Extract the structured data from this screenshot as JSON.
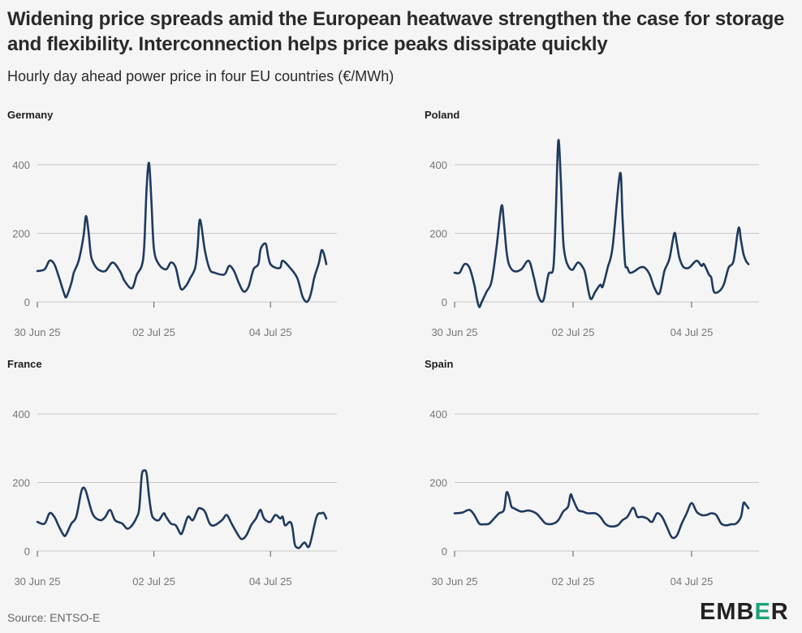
{
  "title": "Widening price spreads amid the European heatwave strengthen the case for storage and flexibility. Interconnection helps price peaks dissipate quickly",
  "subtitle": "Hourly day ahead power price in four EU countries (€/MWh)",
  "source": "Source: ENTSO-E",
  "logo": {
    "pre": "EMB",
    "mid": "E",
    "post": "R",
    "accent_color": "#1aa37a"
  },
  "colors": {
    "series": "#1f3a5f",
    "grid": "#c8c8c8",
    "background": "#f5f5f5"
  },
  "chart_data": [
    {
      "type": "line",
      "title": "Germany",
      "x_unit": "hours from 30 Jun 25 00:00",
      "x_tick_labels": [
        "30 Jun 25",
        "02 Jul 25",
        "04 Jul 25"
      ],
      "x_ticks": [
        0,
        48,
        96
      ],
      "xlim": [
        0,
        120
      ],
      "y_ticks": [
        0,
        200,
        400
      ],
      "ylim": [
        -40,
        480
      ],
      "grid": true,
      "x": [
        0,
        3,
        5,
        7,
        9,
        11,
        12,
        14,
        15,
        17,
        19,
        20,
        21,
        22,
        23,
        25,
        28,
        31,
        34,
        36,
        39,
        41,
        43,
        44,
        45,
        46,
        47,
        48,
        50,
        53,
        55,
        57,
        59,
        61,
        63,
        65,
        66,
        67,
        69,
        71,
        73,
        77,
        79,
        81,
        83,
        85,
        87,
        89,
        91,
        92,
        94,
        95,
        96,
        98,
        100,
        101,
        104,
        107,
        109,
        110,
        111,
        112,
        113,
        114,
        116,
        117,
        118,
        119
      ],
      "values": [
        90,
        95,
        120,
        110,
        70,
        25,
        15,
        55,
        85,
        120,
        190,
        250,
        210,
        140,
        115,
        95,
        90,
        115,
        90,
        60,
        40,
        80,
        105,
        160,
        330,
        405,
        290,
        155,
        110,
        95,
        115,
        100,
        40,
        45,
        70,
        100,
        160,
        240,
        150,
        95,
        85,
        80,
        105,
        90,
        55,
        30,
        45,
        95,
        110,
        155,
        170,
        135,
        110,
        100,
        100,
        120,
        100,
        70,
        20,
        5,
        0,
        10,
        35,
        70,
        115,
        150,
        140,
        110
      ]
    },
    {
      "type": "line",
      "title": "Poland",
      "x_unit": "hours from 30 Jun 25 00:00",
      "x_tick_labels": [
        "30 Jun 25",
        "02 Jul 25",
        "04 Jul 25"
      ],
      "x_ticks": [
        0,
        48,
        96
      ],
      "xlim": [
        0,
        120
      ],
      "y_ticks": [
        0,
        200,
        400
      ],
      "ylim": [
        -40,
        480
      ],
      "grid": true,
      "x": [
        0,
        2,
        4,
        6,
        8,
        9,
        10,
        11,
        13,
        15,
        17,
        19,
        20,
        21,
        22,
        24,
        27,
        30,
        32,
        34,
        36,
        38,
        40,
        41,
        42,
        43,
        44,
        45,
        46,
        47,
        48,
        50,
        52,
        53,
        55,
        57,
        59,
        60,
        62,
        64,
        67,
        68,
        69,
        70,
        71,
        73,
        75,
        77,
        79,
        81,
        83,
        85,
        87,
        89,
        90,
        91,
        92,
        93,
        95,
        98,
        100,
        101,
        103,
        104,
        105,
        107,
        109,
        111,
        113,
        115,
        116,
        117,
        118,
        119
      ],
      "values": [
        85,
        85,
        110,
        100,
        50,
        10,
        -15,
        0,
        30,
        60,
        160,
        280,
        230,
        150,
        110,
        90,
        95,
        120,
        75,
        15,
        5,
        80,
        100,
        260,
        470,
        360,
        180,
        125,
        105,
        95,
        95,
        115,
        100,
        80,
        10,
        30,
        50,
        45,
        100,
        160,
        375,
        250,
        115,
        100,
        85,
        90,
        100,
        100,
        80,
        40,
        25,
        90,
        125,
        200,
        170,
        130,
        110,
        100,
        100,
        120,
        105,
        110,
        80,
        70,
        30,
        30,
        50,
        100,
        120,
        215,
        180,
        140,
        120,
        110
      ]
    },
    {
      "type": "line",
      "title": "France",
      "x_unit": "hours from 30 Jun 25 00:00",
      "x_tick_labels": [
        "30 Jun 25",
        "02 Jul 25",
        "04 Jul 25"
      ],
      "x_ticks": [
        0,
        48,
        96
      ],
      "xlim": [
        0,
        120
      ],
      "y_ticks": [
        0,
        200,
        400
      ],
      "ylim": [
        -40,
        480
      ],
      "grid": true,
      "x": [
        0,
        3,
        5,
        7,
        9,
        11,
        12,
        14,
        16,
        18,
        19,
        20,
        21,
        23,
        26,
        28,
        30,
        32,
        35,
        37,
        39,
        41,
        42,
        43,
        44,
        45,
        46,
        47,
        48,
        50,
        52,
        53,
        55,
        57,
        59,
        60,
        62,
        64,
        66,
        67,
        69,
        71,
        73,
        76,
        78,
        80,
        82,
        84,
        86,
        88,
        90,
        91,
        92,
        93,
        94,
        96,
        98,
        100,
        101,
        102,
        104,
        105,
        106,
        107,
        108,
        110,
        112,
        115,
        117,
        118,
        119
      ],
      "values": [
        85,
        80,
        110,
        100,
        70,
        45,
        50,
        80,
        100,
        170,
        185,
        175,
        150,
        105,
        90,
        100,
        120,
        90,
        80,
        65,
        75,
        100,
        125,
        220,
        235,
        225,
        160,
        110,
        95,
        90,
        110,
        100,
        80,
        75,
        50,
        60,
        100,
        90,
        120,
        125,
        115,
        80,
        75,
        90,
        105,
        80,
        55,
        35,
        45,
        75,
        95,
        110,
        120,
        100,
        90,
        85,
        105,
        95,
        100,
        75,
        85,
        70,
        20,
        10,
        10,
        25,
        15,
        100,
        110,
        110,
        95
      ]
    },
    {
      "type": "line",
      "title": "Spain",
      "x_unit": "hours from 30 Jun 25 00:00",
      "x_tick_labels": [
        "30 Jun 25",
        "02 Jul 25",
        "04 Jul 25"
      ],
      "x_ticks": [
        0,
        48,
        96
      ],
      "xlim": [
        0,
        120
      ],
      "y_ticks": [
        0,
        200,
        400
      ],
      "ylim": [
        -40,
        480
      ],
      "grid": true,
      "x": [
        0,
        3,
        6,
        8,
        10,
        12,
        14,
        16,
        18,
        20,
        21,
        22,
        23,
        24,
        27,
        30,
        33,
        35,
        37,
        40,
        42,
        44,
        46,
        47,
        48,
        50,
        52,
        54,
        57,
        59,
        61,
        63,
        66,
        68,
        70,
        72,
        73,
        74,
        76,
        78,
        80,
        82,
        84,
        86,
        88,
        90,
        92,
        94,
        96,
        98,
        100,
        102,
        104,
        106,
        108,
        110,
        112,
        114,
        116,
        117,
        118,
        119
      ],
      "values": [
        110,
        112,
        120,
        105,
        80,
        78,
        80,
        95,
        110,
        120,
        170,
        160,
        130,
        125,
        115,
        118,
        110,
        95,
        80,
        80,
        90,
        115,
        130,
        165,
        150,
        120,
        115,
        110,
        110,
        100,
        80,
        72,
        75,
        90,
        100,
        125,
        120,
        100,
        100,
        95,
        85,
        110,
        100,
        70,
        40,
        45,
        80,
        110,
        140,
        115,
        105,
        105,
        110,
        105,
        80,
        75,
        78,
        80,
        100,
        140,
        135,
        125
      ]
    }
  ]
}
